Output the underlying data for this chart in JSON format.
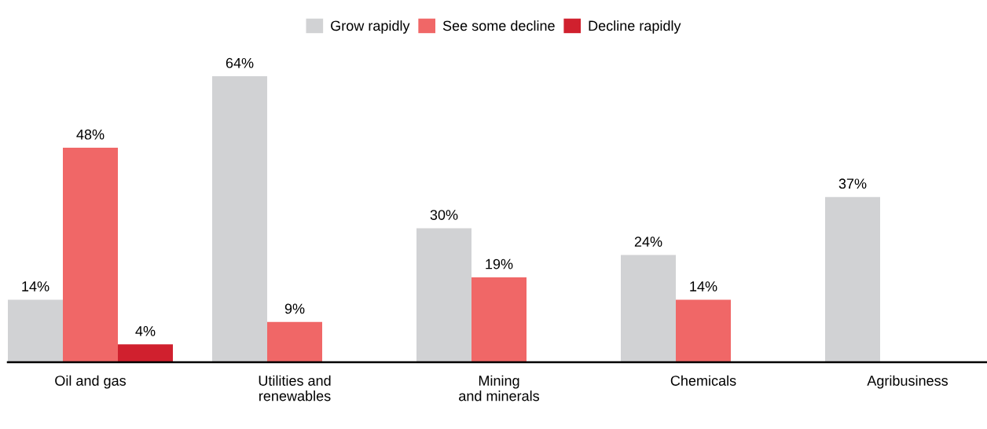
{
  "chart_data": {
    "type": "bar",
    "categories": [
      "Oil and gas",
      "Utilities and\nrenewables",
      "Mining\nand minerals",
      "Chemicals",
      "Agribusiness"
    ],
    "series": [
      {
        "name": "Grow rapidly",
        "color": "#d1d2d4",
        "values": [
          14,
          64,
          30,
          24,
          37
        ],
        "value_labels": [
          "14%",
          "64%",
          "30%",
          "24%",
          "37%"
        ]
      },
      {
        "name": "See some decline",
        "color": "#f06767",
        "values": [
          48,
          9,
          19,
          14,
          null
        ],
        "value_labels": [
          "48%",
          "9%",
          "19%",
          "14%",
          null
        ]
      },
      {
        "name": "Decline rapidly",
        "color": "#d0202e",
        "values": [
          4,
          null,
          null,
          null,
          null
        ],
        "value_labels": [
          "4%",
          null,
          null,
          null,
          null
        ]
      }
    ],
    "grid": false,
    "legend": "top"
  }
}
